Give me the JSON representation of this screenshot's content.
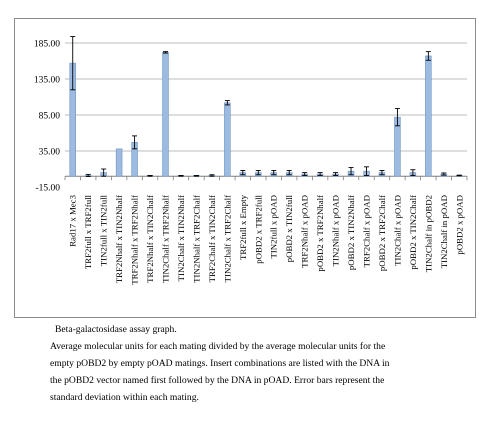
{
  "chart_data": {
    "type": "bar",
    "categories": [
      "Rad17 x Mec3",
      "TRF2full x TRF2full",
      "TIN2full x TIN2full",
      "TRF2Nhalf x TIN2Nhalf",
      "TRF2Nhalf x TRF2Nhalf",
      "TRF2Nhalf x TIN2Chalf",
      "TIN2Chalf x TRF2Nhalf",
      "TIN2Chalf x TIN2Nhalf",
      "TIN2Nhalf x TRF2Chalf",
      "TRF2Chalf x TIN2Chalf",
      "TIN2Chalf x TRF2Chalf",
      "TRF2full x Empty",
      "pOBD2 x TRF2full",
      "TIN2full x pOAD",
      "pOBD2 x TIN2full",
      "TRF2Nhalf x pOAD",
      "pOBD2 x TRF2Nhalf",
      "TIN2Nhalf x pOAD",
      "pOBD2 x TIN2Nhalf",
      "TRF2Chalf x pOAD",
      "pOBD2 x TRF2Chalf",
      "TIN2Chalf x pOAD",
      "pOBD2 x TIN2Chalf",
      "TIN2Chalf in pOBD2",
      "TIN2Chalf in pOAD",
      "pOBD2 x pOAD"
    ],
    "values": [
      157,
      1,
      5,
      38,
      47,
      0.5,
      172,
      0.5,
      0.5,
      1,
      102,
      5,
      5,
      5,
      5,
      3,
      3,
      3,
      7,
      7,
      5,
      82,
      5,
      167,
      3,
      1
    ],
    "error": [
      37,
      1.5,
      5,
      0,
      9,
      0.5,
      1,
      0.5,
      0.5,
      1,
      3,
      3,
      3,
      3,
      3,
      2,
      2,
      2,
      5,
      6,
      3,
      12,
      4,
      6,
      1.5,
      0.5
    ],
    "title": "",
    "xlabel": "",
    "ylabel": "",
    "ylim": [
      -15,
      185
    ],
    "yticks": [
      "185.00",
      "135.00",
      "85.00",
      "35.00",
      "-15.00"
    ],
    "ytick_values": [
      185,
      135,
      85,
      35,
      -15
    ],
    "grid": true,
    "bar_color": "#9dbbe0",
    "bar_edge_color": "#6f94c4",
    "grid_color": "#a6a6a6"
  },
  "caption": {
    "title": "Beta-galactosidase assay graph.",
    "lines": [
      "Average molecular units for each mating divided by the average molecular units for the",
      "empty pOBD2 by empty pOAD matings.  Insert combinations are listed with the DNA  in",
      "the pOBD2 vector named first followed by the DNA in pOAD.  Error bars represent the",
      "standard deviation within each mating."
    ]
  }
}
